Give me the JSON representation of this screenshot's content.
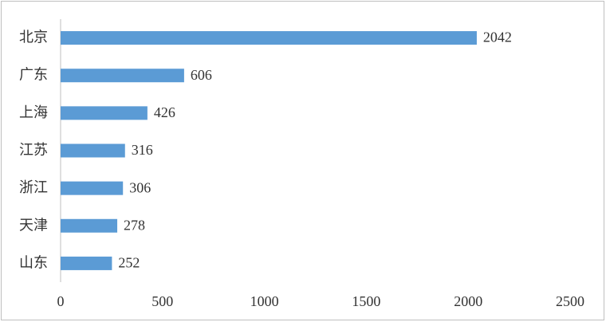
{
  "chart_data": {
    "type": "bar",
    "orientation": "horizontal",
    "categories": [
      "北京",
      "广东",
      "上海",
      "江苏",
      "浙江",
      "天津",
      "山东"
    ],
    "values": [
      2042,
      606,
      426,
      316,
      306,
      278,
      252
    ],
    "color": "#5b9bd5",
    "xlim": [
      0,
      2500
    ],
    "xticks": [
      0,
      500,
      1000,
      1500,
      2000,
      2500
    ],
    "grid": false
  }
}
